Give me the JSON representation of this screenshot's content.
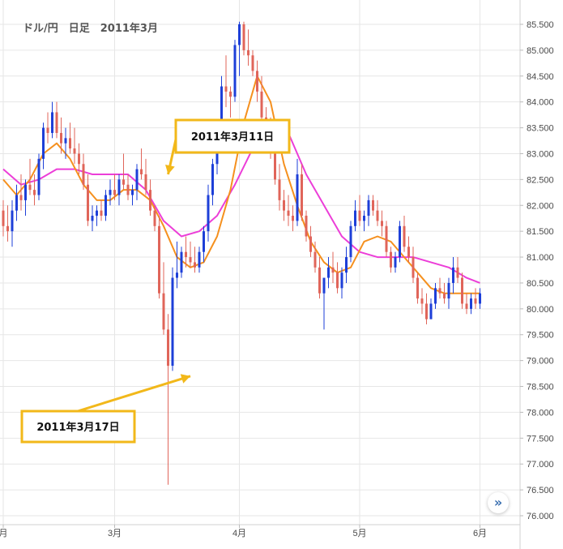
{
  "chart_data": {
    "type": "candlestick",
    "title": "ドル/円　日足　2011年3月",
    "ylim": [
      75.9,
      86.0
    ],
    "yticks": [
      "76.000",
      "76.500",
      "77.000",
      "77.500",
      "78.000",
      "78.500",
      "79.000",
      "79.500",
      "80.000",
      "80.500",
      "81.000",
      "81.500",
      "82.000",
      "82.500",
      "83.000",
      "83.500",
      "84.000",
      "84.500",
      "85.000",
      "85.500"
    ],
    "x_month_labels": [
      {
        "label": "月",
        "at_bar": 0
      },
      {
        "label": "3月",
        "at_bar": 25
      },
      {
        "label": "4月",
        "at_bar": 53
      },
      {
        "label": "5月",
        "at_bar": 80
      },
      {
        "label": "6月",
        "at_bar": 107
      }
    ],
    "candles_ohlc": [
      [
        81.9,
        82.1,
        81.4,
        81.6
      ],
      [
        81.6,
        82.0,
        81.3,
        81.5
      ],
      [
        81.5,
        82.1,
        81.2,
        81.9
      ],
      [
        81.9,
        82.4,
        81.7,
        82.2
      ],
      [
        82.2,
        82.6,
        81.9,
        82.1
      ],
      [
        82.1,
        82.5,
        81.8,
        82.4
      ],
      [
        82.4,
        82.9,
        82.2,
        82.3
      ],
      [
        82.3,
        82.6,
        82.0,
        82.2
      ],
      [
        82.2,
        83.0,
        82.1,
        82.9
      ],
      [
        82.9,
        83.6,
        82.7,
        83.5
      ],
      [
        83.5,
        83.8,
        83.2,
        83.4
      ],
      [
        83.4,
        84.0,
        83.3,
        83.8
      ],
      [
        83.8,
        84.0,
        83.3,
        83.4
      ],
      [
        83.4,
        83.7,
        83.0,
        83.2
      ],
      [
        83.2,
        83.5,
        82.9,
        83.3
      ],
      [
        83.3,
        83.6,
        83.0,
        83.1
      ],
      [
        83.1,
        83.5,
        82.8,
        83.0
      ],
      [
        83.0,
        83.2,
        82.6,
        82.8
      ],
      [
        82.8,
        83.0,
        82.3,
        82.4
      ],
      [
        82.4,
        82.6,
        81.6,
        81.7
      ],
      [
        81.7,
        82.0,
        81.5,
        81.8
      ],
      [
        81.8,
        82.0,
        81.6,
        81.9
      ],
      [
        81.9,
        82.1,
        81.7,
        81.8
      ],
      [
        81.8,
        82.3,
        81.7,
        82.2
      ],
      [
        82.2,
        82.5,
        82.0,
        82.3
      ],
      [
        82.3,
        82.6,
        82.1,
        82.2
      ],
      [
        82.2,
        82.6,
        82.0,
        82.5
      ],
      [
        82.5,
        83.0,
        82.3,
        82.4
      ],
      [
        82.4,
        82.6,
        82.1,
        82.2
      ],
      [
        82.2,
        82.4,
        82.0,
        82.3
      ],
      [
        82.3,
        82.8,
        82.1,
        82.7
      ],
      [
        82.7,
        83.1,
        82.5,
        82.6
      ],
      [
        82.6,
        82.9,
        82.2,
        82.3
      ],
      [
        82.3,
        82.5,
        81.8,
        81.9
      ],
      [
        81.9,
        82.0,
        81.5,
        81.6
      ],
      [
        81.6,
        81.8,
        80.2,
        80.3
      ],
      [
        80.3,
        80.9,
        79.5,
        79.6
      ],
      [
        79.6,
        79.9,
        76.6,
        78.9
      ],
      [
        78.9,
        80.8,
        78.8,
        80.6
      ],
      [
        80.6,
        81.3,
        80.4,
        80.7
      ],
      [
        80.7,
        81.2,
        80.6,
        81.1
      ],
      [
        81.1,
        81.4,
        80.8,
        81.0
      ],
      [
        81.0,
        81.3,
        80.8,
        80.9
      ],
      [
        80.9,
        81.2,
        80.7,
        80.8
      ],
      [
        80.8,
        81.2,
        80.7,
        81.1
      ],
      [
        81.1,
        81.6,
        80.9,
        81.5
      ],
      [
        81.5,
        82.4,
        81.3,
        82.2
      ],
      [
        82.2,
        82.9,
        82.0,
        82.8
      ],
      [
        82.8,
        83.4,
        82.6,
        83.3
      ],
      [
        83.3,
        84.5,
        83.1,
        84.3
      ],
      [
        84.3,
        84.9,
        83.9,
        84.2
      ],
      [
        84.2,
        84.3,
        83.7,
        84.1
      ],
      [
        84.1,
        85.2,
        84.0,
        85.1
      ],
      [
        85.1,
        85.55,
        84.5,
        85.5
      ],
      [
        85.5,
        85.55,
        84.9,
        85.0
      ],
      [
        85.0,
        85.4,
        84.7,
        84.9
      ],
      [
        84.9,
        85.0,
        84.5,
        84.6
      ],
      [
        84.6,
        84.8,
        84.0,
        84.2
      ],
      [
        84.2,
        84.5,
        83.6,
        83.7
      ],
      [
        83.7,
        83.9,
        83.3,
        83.5
      ],
      [
        83.5,
        83.7,
        82.9,
        83.0
      ],
      [
        83.0,
        83.2,
        82.4,
        82.5
      ],
      [
        82.5,
        82.8,
        81.9,
        82.1
      ],
      [
        82.1,
        82.3,
        81.7,
        81.9
      ],
      [
        81.9,
        82.2,
        81.6,
        81.8
      ],
      [
        81.8,
        82.0,
        81.5,
        81.7
      ],
      [
        81.7,
        82.9,
        81.6,
        82.6
      ],
      [
        82.6,
        82.8,
        81.7,
        81.8
      ],
      [
        81.8,
        81.9,
        81.3,
        81.4
      ],
      [
        81.4,
        81.6,
        81.0,
        81.1
      ],
      [
        81.1,
        81.3,
        80.7,
        80.8
      ],
      [
        80.8,
        81.0,
        80.2,
        80.3
      ],
      [
        80.3,
        80.6,
        79.6,
        80.6
      ],
      [
        80.6,
        81.0,
        80.4,
        80.8
      ],
      [
        80.8,
        81.1,
        80.5,
        80.7
      ],
      [
        80.7,
        80.9,
        80.3,
        80.4
      ],
      [
        80.4,
        80.8,
        80.2,
        80.7
      ],
      [
        80.7,
        81.2,
        80.5,
        81.0
      ],
      [
        81.0,
        81.7,
        80.9,
        81.6
      ],
      [
        81.6,
        82.1,
        81.5,
        81.9
      ],
      [
        81.9,
        82.2,
        81.6,
        81.7
      ],
      [
        81.7,
        81.9,
        81.5,
        81.8
      ],
      [
        81.8,
        82.2,
        81.6,
        82.1
      ],
      [
        82.1,
        82.2,
        81.8,
        81.9
      ],
      [
        81.9,
        82.1,
        81.6,
        81.7
      ],
      [
        81.7,
        81.9,
        81.4,
        81.6
      ],
      [
        81.6,
        81.7,
        81.0,
        81.1
      ],
      [
        81.1,
        81.2,
        80.7,
        80.8
      ],
      [
        80.8,
        81.1,
        80.7,
        81.0
      ],
      [
        81.0,
        81.7,
        80.9,
        81.6
      ],
      [
        81.6,
        81.8,
        81.1,
        81.2
      ],
      [
        81.2,
        81.4,
        80.9,
        81.0
      ],
      [
        81.0,
        81.2,
        80.5,
        80.6
      ],
      [
        80.6,
        80.7,
        80.1,
        80.2
      ],
      [
        80.2,
        80.4,
        79.9,
        80.1
      ],
      [
        80.1,
        80.3,
        79.7,
        79.8
      ],
      [
        79.8,
        80.2,
        79.8,
        80.1
      ],
      [
        80.1,
        80.5,
        80.0,
        80.4
      ],
      [
        80.4,
        80.6,
        80.2,
        80.3
      ],
      [
        80.3,
        80.5,
        80.1,
        80.2
      ],
      [
        80.2,
        80.6,
        80.0,
        80.5
      ],
      [
        80.5,
        81.0,
        80.3,
        80.8
      ],
      [
        80.8,
        81.0,
        80.5,
        80.6
      ],
      [
        80.6,
        80.7,
        80.0,
        80.1
      ],
      [
        80.1,
        80.3,
        79.9,
        80.0
      ],
      [
        80.0,
        80.3,
        79.9,
        80.2
      ],
      [
        80.2,
        80.4,
        80.0,
        80.1
      ],
      [
        80.1,
        80.4,
        80.0,
        80.3
      ]
    ],
    "ma_short": [
      [
        0,
        82.5
      ],
      [
        3,
        82.2
      ],
      [
        6,
        82.5
      ],
      [
        9,
        83.0
      ],
      [
        12,
        83.2
      ],
      [
        15,
        82.9
      ],
      [
        18,
        82.4
      ],
      [
        21,
        82.1
      ],
      [
        24,
        82.1
      ],
      [
        27,
        82.3
      ],
      [
        30,
        82.3
      ],
      [
        33,
        82.1
      ],
      [
        36,
        81.6
      ],
      [
        39,
        81.0
      ],
      [
        42,
        80.8
      ],
      [
        45,
        80.9
      ],
      [
        48,
        81.4
      ],
      [
        51,
        82.3
      ],
      [
        54,
        83.6
      ],
      [
        57,
        84.5
      ],
      [
        60,
        84.0
      ],
      [
        63,
        82.8
      ],
      [
        66,
        82.0
      ],
      [
        69,
        81.3
      ],
      [
        72,
        80.9
      ],
      [
        75,
        80.7
      ],
      [
        78,
        80.8
      ],
      [
        81,
        81.3
      ],
      [
        84,
        81.4
      ],
      [
        87,
        81.3
      ],
      [
        90,
        81.0
      ],
      [
        93,
        80.7
      ],
      [
        96,
        80.4
      ],
      [
        99,
        80.3
      ],
      [
        102,
        80.3
      ],
      [
        105,
        80.3
      ],
      [
        107,
        80.3
      ]
    ],
    "ma_long": [
      [
        0,
        82.7
      ],
      [
        4,
        82.4
      ],
      [
        8,
        82.5
      ],
      [
        12,
        82.7
      ],
      [
        16,
        82.7
      ],
      [
        20,
        82.6
      ],
      [
        24,
        82.6
      ],
      [
        28,
        82.6
      ],
      [
        32,
        82.3
      ],
      [
        36,
        81.7
      ],
      [
        40,
        81.4
      ],
      [
        44,
        81.5
      ],
      [
        48,
        81.8
      ],
      [
        52,
        82.4
      ],
      [
        56,
        83.1
      ],
      [
        60,
        83.5
      ],
      [
        64,
        83.4
      ],
      [
        68,
        82.6
      ],
      [
        72,
        82.0
      ],
      [
        76,
        81.4
      ],
      [
        80,
        81.1
      ],
      [
        84,
        81.0
      ],
      [
        88,
        81.0
      ],
      [
        92,
        81.0
      ],
      [
        96,
        80.9
      ],
      [
        100,
        80.8
      ],
      [
        104,
        80.6
      ],
      [
        107,
        80.5
      ]
    ],
    "annotations": [
      {
        "text": "2011年3月11日",
        "target": [
          37,
          82.6
        ]
      },
      {
        "text": "2011年3月17日",
        "target": [
          42,
          78.7
        ]
      }
    ],
    "colors": {
      "up": "#1d3fd8",
      "down": "#e0655a",
      "ma_short": "#f5901e",
      "ma_long": "#ec3ed8",
      "annotation_border": "#f2b81a",
      "grid": "#e6e6e6",
      "axis_text": "#4a4a4a"
    },
    "scroll_icon": "chevron-double-right-icon"
  }
}
